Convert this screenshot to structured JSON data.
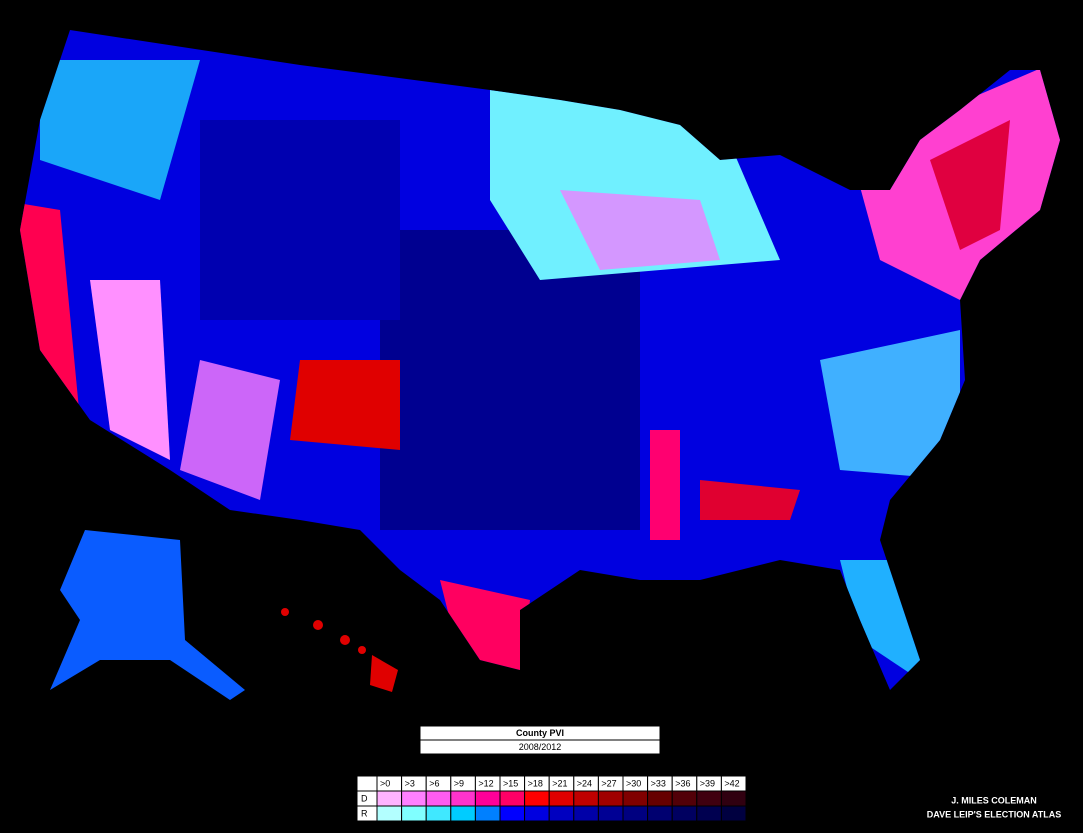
{
  "title": "County PVI",
  "subtitle": "2008/2012",
  "legend": {
    "thresholds": [
      ">0",
      ">3",
      ">6",
      ">9",
      ">12",
      ">15",
      ">18",
      ">21",
      ">24",
      ">27",
      ">30",
      ">33",
      ">36",
      ">39",
      ">42"
    ],
    "rows": [
      {
        "label": "D",
        "colors": [
          "#ffb3ff",
          "#ff80ff",
          "#ff5cf0",
          "#ff33cc",
          "#ff0099",
          "#ff0066",
          "#ff0000",
          "#e00000",
          "#c00000",
          "#a00000",
          "#800000",
          "#660000",
          "#520008",
          "#400010",
          "#300010"
        ]
      },
      {
        "label": "R",
        "colors": [
          "#b3ffff",
          "#80ffff",
          "#40e8ff",
          "#00ccff",
          "#0080ff",
          "#0000ff",
          "#0000e0",
          "#0000c0",
          "#0000a8",
          "#000094",
          "#000080",
          "#000070",
          "#000060",
          "#000050",
          "#000040"
        ]
      }
    ]
  },
  "credits": [
    "J. MILES COLEMAN",
    "DAVE LEIP'S ELECTION ATLAS"
  ]
}
